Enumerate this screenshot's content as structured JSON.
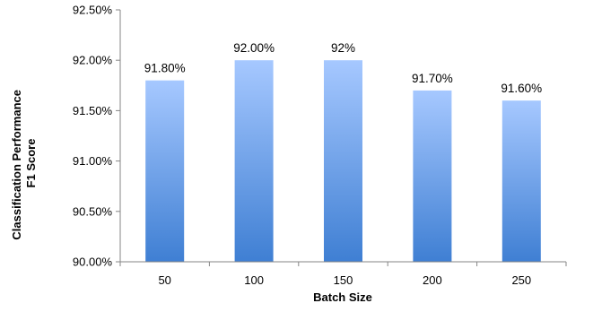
{
  "chart_data": {
    "type": "bar",
    "categories": [
      "50",
      "100",
      "150",
      "200",
      "250"
    ],
    "values": [
      91.8,
      92.0,
      92.0,
      91.7,
      91.6
    ],
    "data_labels": [
      "91.80%",
      "92.00%",
      "92%",
      "91.70%",
      "91.60%"
    ],
    "title": "",
    "xlabel": "Batch Size",
    "ylabel_lines": [
      "Classification Performance",
      "F1 Score"
    ],
    "ylim": [
      90.0,
      92.5
    ],
    "yticks": [
      90.0,
      90.5,
      91.0,
      91.5,
      92.0,
      92.5
    ],
    "ytick_labels": [
      "90.00%",
      "90.50%",
      "91.00%",
      "91.50%",
      "92.00%",
      "92.50%"
    ],
    "grid": false,
    "legend": "none",
    "colors": {
      "bar_top": "#a6c8ff",
      "bar_bottom": "#3f7fd3",
      "axis": "#868686"
    }
  }
}
